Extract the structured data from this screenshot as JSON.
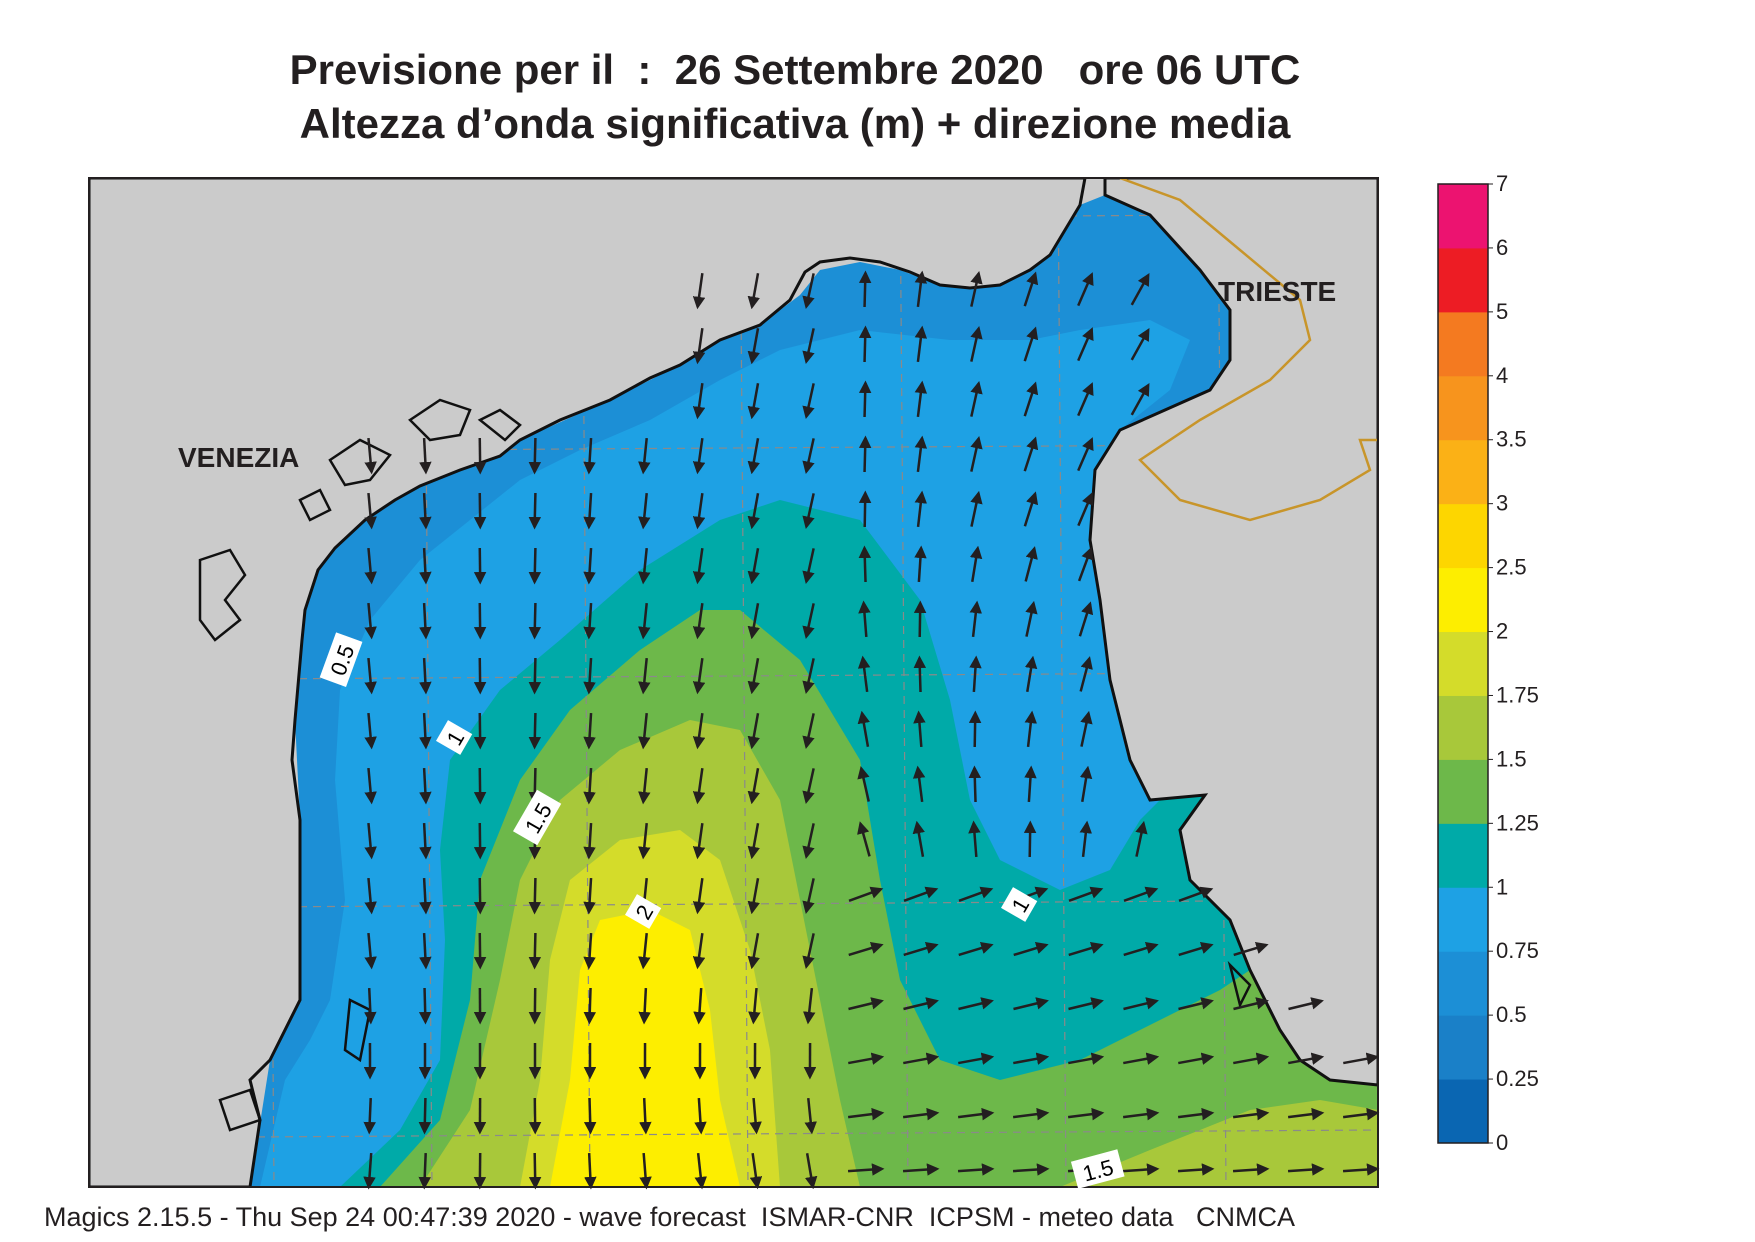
{
  "title": {
    "line1": "Previsione per il  :  26 Settembre 2020   ore 06 UTC",
    "line2": "Altezza d’onda significativa (m) + direzione media"
  },
  "places": [
    {
      "name": "VENEZIA"
    },
    {
      "name": "TRIESTE"
    }
  ],
  "contour_labels": [
    "0.5",
    "1",
    "1.5",
    "2",
    "1",
    "1.5"
  ],
  "colorbar": {
    "levels": [
      "0",
      "0.25",
      "0.5",
      "0.75",
      "1",
      "1.25",
      "1.5",
      "1.75",
      "2",
      "2.5",
      "3",
      "3.5",
      "4",
      "5",
      "6",
      "7"
    ],
    "colors": [
      "#0a66b2",
      "#1a80c8",
      "#1c8fd6",
      "#1ea1e4",
      "#00aaa8",
      "#6db84a",
      "#a8c83a",
      "#d4dc2a",
      "#fdee00",
      "#fdd600",
      "#fbb116",
      "#f7941d",
      "#f47a20",
      "#ed1c24",
      "#ec1370"
    ]
  },
  "colors": {
    "land": "#cbcbcb",
    "coast": "#111111",
    "border": "#c8952a",
    "grid": "#8a8a8a",
    "arrow": "#231f20"
  },
  "footer": "Magics 2.15.5 - Thu Sep 24 00:47:39 2020 - wave forecast  ISMAR-CNR  ICPSM - meteo data   CNMCA"
}
